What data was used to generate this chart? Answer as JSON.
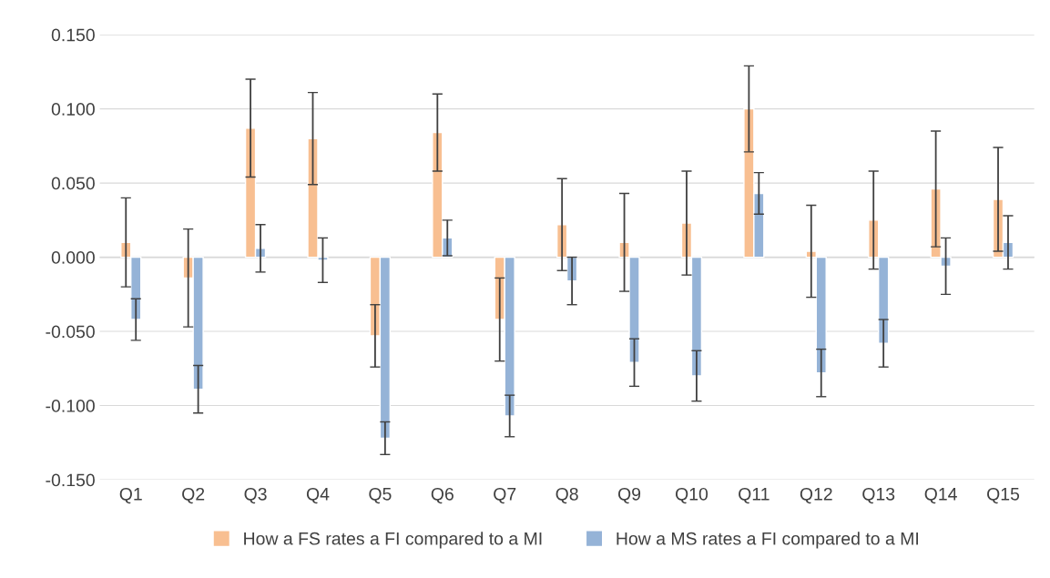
{
  "chart_data": {
    "type": "bar",
    "categories": [
      "Q1",
      "Q2",
      "Q3",
      "Q4",
      "Q5",
      "Q6",
      "Q7",
      "Q8",
      "Q9",
      "Q10",
      "Q11",
      "Q12",
      "Q13",
      "Q14",
      "Q15"
    ],
    "series": [
      {
        "name": "How a FS rates a FI compared to a MI",
        "color": "#f8bf91",
        "values": [
          0.01,
          -0.014,
          0.087,
          0.08,
          -0.053,
          0.084,
          -0.042,
          0.022,
          0.01,
          0.023,
          0.1,
          0.004,
          0.025,
          0.046,
          0.039
        ],
        "errors": [
          0.03,
          0.033,
          0.033,
          0.031,
          0.021,
          0.026,
          0.028,
          0.031,
          0.033,
          0.035,
          0.029,
          0.031,
          0.033,
          0.039,
          0.035
        ]
      },
      {
        "name": "How a MS rates a FI compared to a MI",
        "color": "#95b3d7",
        "values": [
          -0.042,
          -0.089,
          0.006,
          -0.002,
          -0.122,
          0.013,
          -0.107,
          -0.016,
          -0.071,
          -0.08,
          0.043,
          -0.078,
          -0.058,
          -0.006,
          0.01
        ],
        "errors": [
          0.014,
          0.016,
          0.016,
          0.015,
          0.011,
          0.012,
          0.014,
          0.016,
          0.016,
          0.017,
          0.014,
          0.016,
          0.016,
          0.019,
          0.018
        ]
      }
    ],
    "ylim": [
      -0.15,
      0.15
    ],
    "yticks": [
      {
        "value": -0.15,
        "label": "-0.150"
      },
      {
        "value": -0.1,
        "label": "-0.100"
      },
      {
        "value": -0.05,
        "label": "-0.050"
      },
      {
        "value": 0,
        "label": "0.000"
      },
      {
        "value": 0.05,
        "label": "0.050"
      },
      {
        "value": 0.1,
        "label": "0.100"
      },
      {
        "value": 0.15,
        "label": "0.150"
      }
    ],
    "grid": "y",
    "legend": "bottom"
  }
}
